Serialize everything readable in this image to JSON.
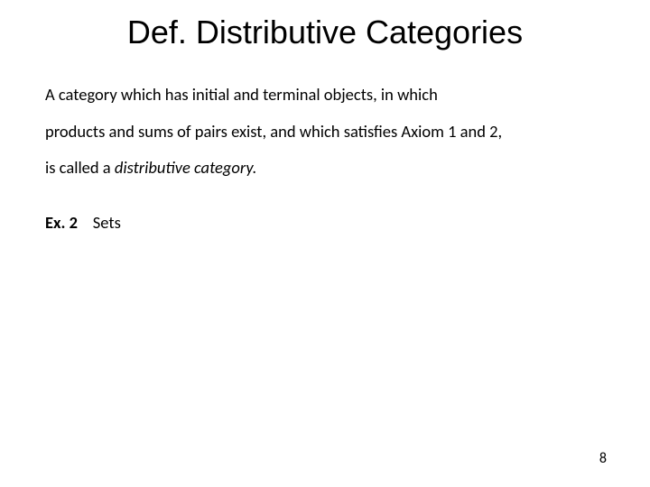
{
  "slide": {
    "title": "Def.  Distributive Categories",
    "body": {
      "line1": "A category which has initial and terminal objects, in which",
      "line2": "products and sums of pairs exist, and which satisfies Axiom 1 and 2,",
      "line3_prefix": "is called a ",
      "line3_italic": "distributive category."
    },
    "example": {
      "label": "Ex. 2",
      "text": "Sets"
    },
    "page_number": "8"
  },
  "styling": {
    "background_color": "#ffffff",
    "title_fontsize": 36,
    "title_color": "#000000",
    "body_fontsize": 18.5,
    "body_color": "#000000",
    "body_line_height": 2.2,
    "page_number_fontsize": 16
  }
}
